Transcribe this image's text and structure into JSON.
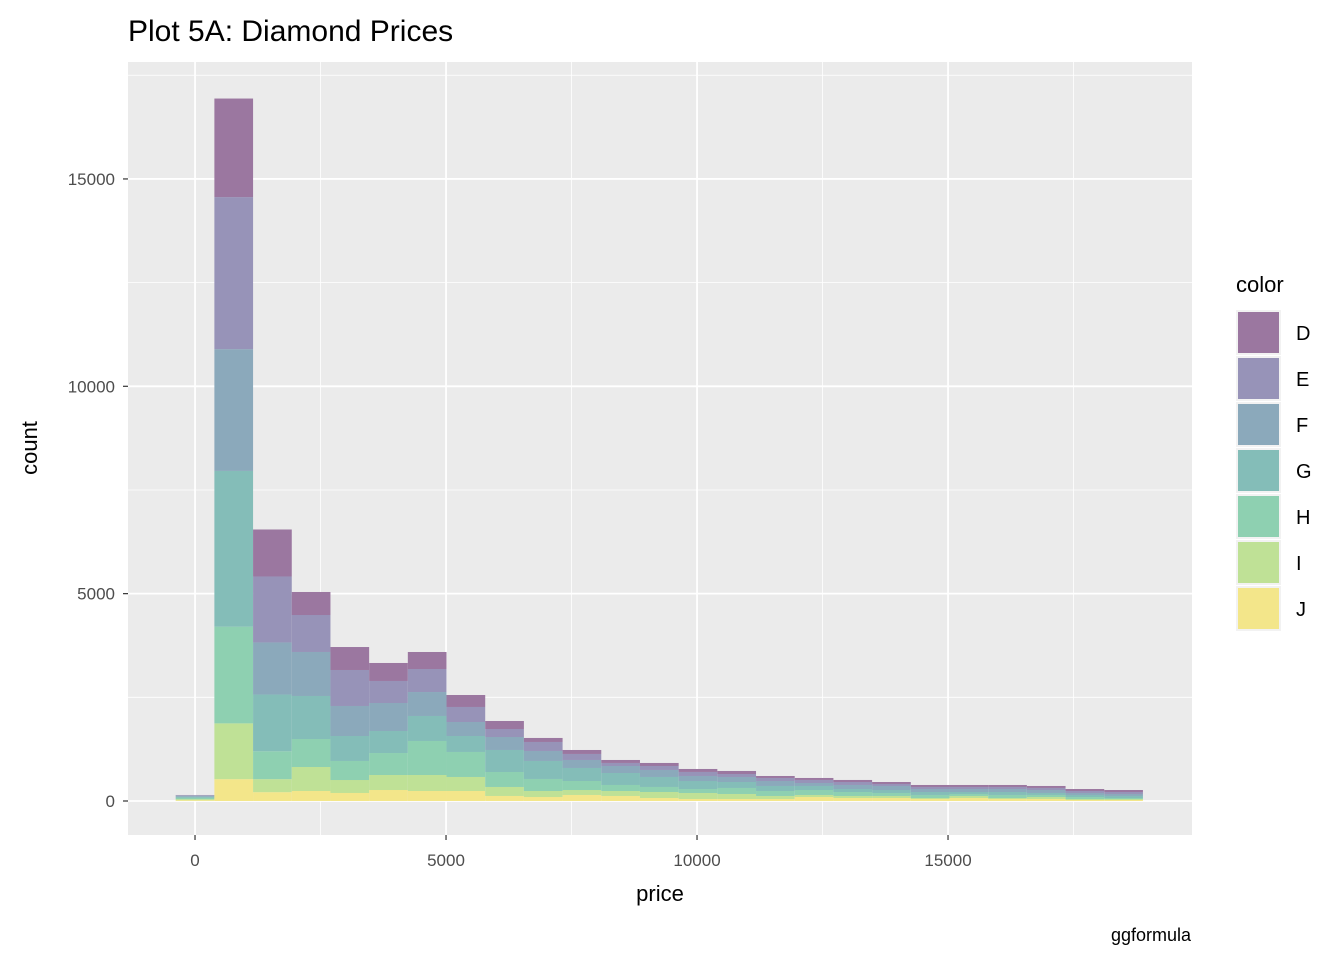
{
  "chart_data": {
    "type": "bar",
    "stacked": true,
    "title": "Plot 5A: Diamond Prices",
    "xlabel": "price",
    "ylabel": "count",
    "caption": "ggformula",
    "legend_title": "color",
    "legend_position": "right",
    "grid": true,
    "xlim": [
      -1335,
      19860
    ],
    "ylim": [
      -820,
      17820
    ],
    "x_ticks": [
      0,
      5000,
      10000,
      15000
    ],
    "x_tick_labels": [
      "0",
      "5000",
      "10000",
      "15000"
    ],
    "y_ticks": [
      0,
      5000,
      10000,
      15000
    ],
    "y_tick_labels": [
      "0",
      "5000",
      "10000",
      "15000"
    ],
    "bin_width": 770.7,
    "bin_start": -385,
    "series": [
      {
        "name": "J",
        "color": "#f3e68a",
        "values": [
          20,
          527,
          213,
          241,
          193,
          265,
          241,
          241,
          121,
          96,
          145,
          121,
          72,
          48,
          48,
          48,
          96,
          72,
          72,
          48,
          72,
          48,
          48,
          24,
          24
        ]
      },
      {
        "name": "I",
        "color": "#bfe196",
        "values": [
          25,
          1345,
          314,
          579,
          313,
          362,
          386,
          338,
          217,
          145,
          120,
          120,
          145,
          145,
          121,
          73,
          49,
          49,
          49,
          24,
          49,
          24,
          48,
          24,
          24
        ]
      },
      {
        "name": "H",
        "color": "#8ed0b1",
        "values": [
          30,
          2332,
          672,
          675,
          459,
          530,
          820,
          603,
          361,
          290,
          217,
          145,
          121,
          96,
          145,
          120,
          120,
          96,
          72,
          73,
          48,
          73,
          49,
          48,
          24
        ]
      },
      {
        "name": "G",
        "color": "#84bdb8",
        "values": [
          25,
          3755,
          1368,
          1037,
          602,
          531,
          603,
          385,
          531,
          434,
          314,
          289,
          241,
          193,
          144,
          121,
          97,
          72,
          72,
          72,
          48,
          72,
          48,
          49,
          49
        ]
      },
      {
        "name": "F",
        "color": "#8ba9bb",
        "values": [
          30,
          2937,
          1256,
          1061,
          724,
          675,
          578,
          338,
          313,
          241,
          193,
          169,
          169,
          121,
          121,
          120,
          72,
          97,
          97,
          72,
          72,
          72,
          72,
          48,
          48
        ]
      },
      {
        "name": "E",
        "color": "#9793b8",
        "values": [
          10,
          3666,
          1591,
          892,
          868,
          531,
          555,
          362,
          193,
          217,
          145,
          73,
          96,
          97,
          72,
          73,
          73,
          72,
          48,
          49,
          49,
          49,
          49,
          48,
          48
        ]
      },
      {
        "name": "D",
        "color": "#9b77a0",
        "values": [
          5,
          2377,
          1133,
          555,
          554,
          434,
          410,
          289,
          193,
          97,
          96,
          72,
          73,
          72,
          73,
          48,
          48,
          49,
          48,
          48,
          48,
          48,
          48,
          48,
          48
        ]
      }
    ]
  }
}
